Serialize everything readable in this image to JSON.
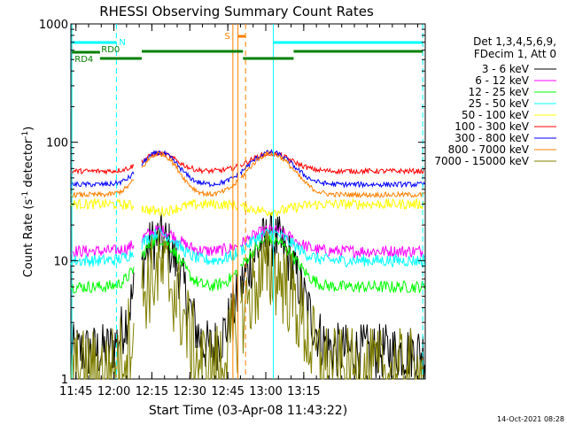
{
  "chart_data": {
    "type": "line",
    "title": "RHESSI Observing Summary Count Rates",
    "xlabel": "Start Time (03-Apr-08 11:43:22)",
    "ylabel_main": "Count Rate (s",
    "ylabel_sup1": "-1",
    "ylabel_mid": " detector",
    "ylabel_sup2": "-1",
    "ylabel_end": ")",
    "yscale": "log",
    "ylim": [
      1,
      1000
    ],
    "xlim_min": [
      703,
      843
    ],
    "x_ticks": [
      {
        "min": 705,
        "label": "11:45"
      },
      {
        "min": 720,
        "label": "12:00"
      },
      {
        "min": 735,
        "label": "12:15"
      },
      {
        "min": 750,
        "label": "12:30"
      },
      {
        "min": 765,
        "label": "12:45"
      },
      {
        "min": 780,
        "label": "13:00"
      },
      {
        "min": 795,
        "label": "13:15"
      }
    ],
    "y_ticks": [
      {
        "value": 1,
        "label": "1"
      },
      {
        "value": 10,
        "label": "10"
      },
      {
        "value": 100,
        "label": "100"
      },
      {
        "value": 1000,
        "label": "1000"
      }
    ],
    "legend_header": [
      "Det 1,3,4,5,6,9,",
      "FDecim 1, Att 0"
    ],
    "series": [
      {
        "name": "3 - 6 keV",
        "color": "#000000",
        "base": 1.7,
        "peak": 15,
        "noise": 0.55
      },
      {
        "name": "6 - 12 keV",
        "color": "#ff00ff",
        "base": 12,
        "peak": 18,
        "noise": 0.12
      },
      {
        "name": "12 - 25 keV",
        "color": "#00ff00",
        "base": 6,
        "peak": 15,
        "noise": 0.12
      },
      {
        "name": "25 - 50 keV",
        "color": "#00ffff",
        "base": 10,
        "peak": 17,
        "noise": 0.12
      },
      {
        "name": "50 - 100 keV",
        "color": "#ffff00",
        "base": 30,
        "peak": 26,
        "noise": 0.1
      },
      {
        "name": "100 - 300 keV",
        "color": "#ff0000",
        "base": 57,
        "peak": 80,
        "noise": 0.05
      },
      {
        "name": "300 - 800 keV",
        "color": "#0000ff",
        "base": 44,
        "peak": 82,
        "noise": 0.05
      },
      {
        "name": "800 - 7000 keV",
        "color": "#ff8000",
        "base": 36,
        "peak": 80,
        "noise": 0.05
      },
      {
        "name": "7000 - 15000 keV",
        "color": "#808000",
        "base": 1.1,
        "peak": 8,
        "noise": 0.9
      }
    ],
    "annotations": {
      "night_label": "N",
      "saa_label": "S",
      "rd0_label": "RD0",
      "rd4_label": "RD4",
      "night_color": "#00ffff",
      "saa_color": "#ff8000",
      "decim_color": "#008000"
    },
    "footer_date": "14-Oct-2021 08:28"
  }
}
